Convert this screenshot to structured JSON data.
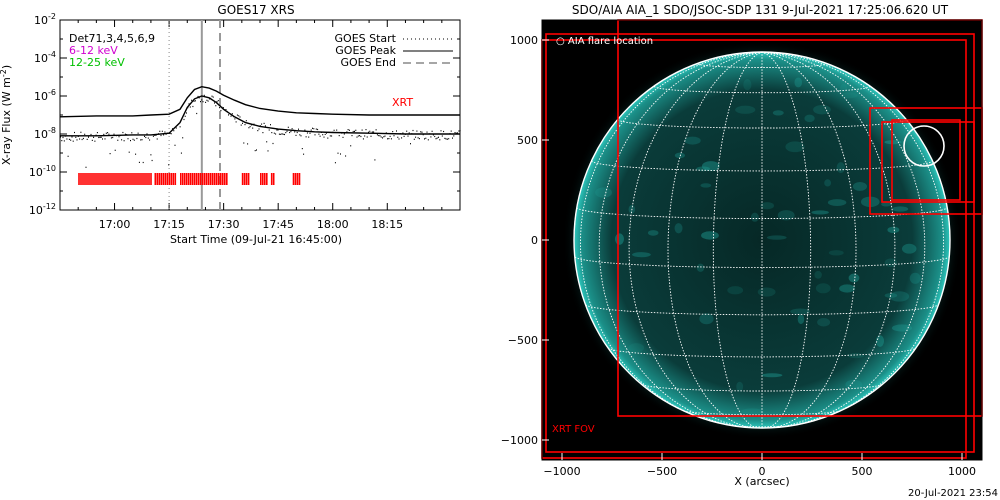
{
  "chart_data": [
    {
      "type": "line",
      "title": "GOES17 XRS",
      "xlabel": "Start Time (09-Jul-21 16:45:00)",
      "ylabel": "X-ray Flux (W m",
      "ylabel_sup": "-2",
      "ylabel_tail": ")",
      "xlim": [
        "16:45",
        "18:35"
      ],
      "x_ticks": [
        "17:00",
        "17:15",
        "17:30",
        "17:45",
        "18:00",
        "18:15"
      ],
      "y_scale": "log",
      "ylim": [
        1e-12,
        0.01
      ],
      "y_ticks": [
        {
          "base": "10",
          "exp": "-2"
        },
        {
          "base": "10",
          "exp": "-4"
        },
        {
          "base": "10",
          "exp": "-6"
        },
        {
          "base": "10",
          "exp": "-8"
        },
        {
          "base": "10",
          "exp": "-10"
        },
        {
          "base": "10",
          "exp": "-12"
        }
      ],
      "detectors_label": "Det71,3,4,5,6,9",
      "bands": [
        {
          "label": "6-12 keV",
          "color": "#d000d0"
        },
        {
          "label": "12-25 keV",
          "color": "#00c000"
        }
      ],
      "legend": {
        "placement": "top-right",
        "entries": [
          {
            "label": "GOES Start",
            "style": "dotted"
          },
          {
            "label": "GOES Peak",
            "style": "solid"
          },
          {
            "label": "GOES End",
            "style": "dashed"
          }
        ]
      },
      "event_times": {
        "start": "17:15",
        "peak": "17:24",
        "end": "17:29"
      },
      "xrt_label": "XRT",
      "xrt_color": "#ff0000",
      "series": [
        {
          "x": [
            "16:45",
            "16:55",
            "17:05",
            "17:10",
            "17:15",
            "17:18",
            "17:20",
            "17:22",
            "17:24",
            "17:26",
            "17:28",
            "17:30",
            "17:33",
            "17:36",
            "17:40",
            "17:45",
            "17:50",
            "17:55",
            "18:00",
            "18:10",
            "18:20",
            "18:35"
          ],
          "values": [
            8e-08,
            9e-08,
            9e-08,
            1e-07,
            1.1e-07,
            2e-07,
            8e-07,
            2.2e-06,
            3.1e-06,
            2.6e-06,
            1.8e-06,
            1.1e-06,
            6e-07,
            3.5e-07,
            2.2e-07,
            1.6e-07,
            1.3e-07,
            1.2e-07,
            1.1e-07,
            1e-07,
            1e-07,
            1e-07
          ]
        },
        {
          "x": [
            "16:45",
            "16:55",
            "17:05",
            "17:10",
            "17:15",
            "17:18",
            "17:20",
            "17:22",
            "17:24",
            "17:26",
            "17:28",
            "17:30",
            "17:33",
            "17:36",
            "17:40",
            "17:45",
            "17:50",
            "17:55",
            "18:00",
            "18:10",
            "18:20",
            "18:35"
          ],
          "values": [
            8e-09,
            8e-09,
            9e-09,
            9e-09,
            1.1e-08,
            4e-08,
            2.5e-07,
            7e-07,
            1e-06,
            8e-07,
            4.5e-07,
            2e-07,
            8e-08,
            4e-08,
            2.5e-08,
            1.8e-08,
            1.5e-08,
            1.3e-08,
            1.2e-08,
            1.1e-08,
            1e-08,
            1e-08
          ]
        }
      ],
      "xrt_observation_times": [
        {
          "start": "16:50",
          "end": "17:10"
        },
        {
          "start": "17:11",
          "end": "17:17"
        },
        {
          "start": "17:18",
          "end": "17:31"
        },
        {
          "start": "17:35",
          "end": "17:37"
        },
        {
          "start": "17:40",
          "end": "17:42"
        },
        {
          "start": "17:43",
          "end": "17:44"
        },
        {
          "start": "17:49",
          "end": "17:51"
        }
      ]
    },
    {
      "type": "scatter",
      "title": "SDO/AIA AIA_1 SDO/JSOC-SDP 131  9-Jul-2021 17:25:06.620 UT",
      "xlabel": "X (arcsec)",
      "ylabel": "",
      "xlim": [
        -1100,
        1100
      ],
      "ylim": [
        -1100,
        1100
      ],
      "x_ticks": [
        -1000,
        -500,
        0,
        500,
        1000
      ],
      "y_ticks": [
        1000,
        500,
        0,
        -500,
        -1000
      ],
      "x_tick_labels": [
        "−1000",
        "−500",
        "0",
        "500",
        "1000"
      ],
      "y_tick_labels": [
        "1000",
        "500",
        "0",
        "−500",
        "−1000"
      ],
      "legend_text": "○ AIA flare location",
      "xrt_fov_label": "XRT FOV",
      "disk_color": "#0a4a48",
      "grid_color": "#ffffff",
      "box_color": "#ff0000",
      "flare_location": {
        "x": 810,
        "y": 470
      },
      "solar_radius": 940,
      "fov_boxes": [
        {
          "xmin": -1080,
          "xmax": 1060,
          "ymin": -1060,
          "ymax": 1030
        },
        {
          "xmin": -1100,
          "xmax": 1020,
          "ymin": -1090,
          "ymax": 1000
        },
        {
          "xmin": -720,
          "xmax": 1110,
          "ymin": -880,
          "ymax": 1130
        },
        {
          "xmin": 540,
          "xmax": 1130,
          "ymin": 130,
          "ymax": 660
        },
        {
          "xmin": 600,
          "xmax": 1060,
          "ymin": 190,
          "ymax": 590
        },
        {
          "xmin": 650,
          "xmax": 990,
          "ymin": 200,
          "ymax": 600
        }
      ]
    }
  ],
  "footer_timestamp": "20-Jul-2021 23:54"
}
